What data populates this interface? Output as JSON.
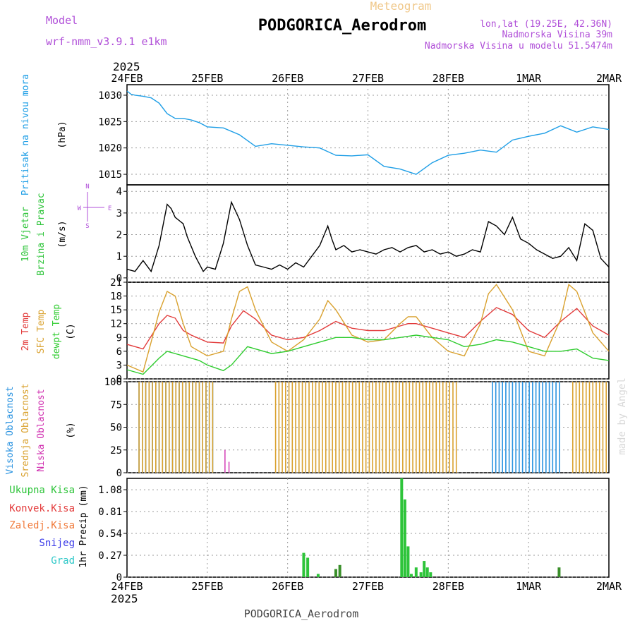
{
  "header": {
    "meteogram_label": "Meteogram",
    "model_label": "Model",
    "model_name": "wrf-nmm_v3.9.1 e1km",
    "station": "PODGORICA_Aerodrom",
    "lonlat": "lon,lat (19.25E, 42.36N)",
    "elev": "Nadmorska Visina 39m",
    "elev_model": "Nadmorska Visina u modelu 51.5474m",
    "year_top": "2025",
    "year_bottom": "2025",
    "footer_station": "PODGORICA_Aerodrom",
    "watermark": "made by Angel"
  },
  "colors": {
    "pressure": "#1e9ee6",
    "temp2m": "#e23b3b",
    "sfctemp": "#d9a12e",
    "dewpt": "#2ecc2e",
    "cloud_high": "#2a93e0",
    "cloud_mid": "#d9a12e",
    "cloud_low": "#d02fb0",
    "precip_total": "#2ec43a",
    "precip_conv": "#e33b3b",
    "precip_frz": "#f07a3a",
    "snow": "#3a3ae8",
    "graupel": "#2ec8c8",
    "wind_label": "#2ec43a",
    "wind_dir": "#b04fd8"
  },
  "days": [
    "24FEB",
    "25FEB",
    "26FEB",
    "27FEB",
    "28FEB",
    "1MAR",
    "2MAR"
  ],
  "chart_data": [
    {
      "panel": "pressure",
      "type": "line",
      "label": "Pritisak na nivou mora",
      "unit": "(hPa)",
      "ylim": [
        1013,
        1032
      ],
      "yticks": [
        1015,
        1020,
        1025,
        1030
      ],
      "grid": true,
      "series": [
        {
          "name": "Pritisak na nivou mora",
          "x": [
            0,
            0.05,
            0.1,
            0.2,
            0.3,
            0.4,
            0.5,
            0.6,
            0.7,
            0.8,
            0.9,
            1.0,
            1.2,
            1.4,
            1.6,
            1.8,
            2.0,
            2.2,
            2.4,
            2.6,
            2.8,
            3.0,
            3.2,
            3.4,
            3.6,
            3.8,
            4.0,
            4.2,
            4.4,
            4.6,
            4.8,
            5.0,
            5.2,
            5.4,
            5.6,
            5.8,
            6.0
          ],
          "y": [
            1030.8,
            1030.2,
            1030.0,
            1029.8,
            1029.5,
            1028.5,
            1026.5,
            1025.6,
            1025.6,
            1025.3,
            1024.8,
            1024.0,
            1023.8,
            1022.5,
            1020.3,
            1020.8,
            1020.5,
            1020.2,
            1020.0,
            1018.6,
            1018.5,
            1018.7,
            1016.5,
            1016.0,
            1015.0,
            1017.2,
            1018.6,
            1019.0,
            1019.6,
            1019.2,
            1021.5,
            1022.2,
            1022.8,
            1024.2,
            1023.0,
            1024.0,
            1023.5
          ]
        }
      ]
    },
    {
      "panel": "wind",
      "type": "line",
      "label_line1": "10m Vjetar",
      "label_line2": "Brzina i Pravac",
      "unit": "(m/s)",
      "ylim": [
        -0.2,
        4.3
      ],
      "yticks": [
        0,
        1,
        2,
        3,
        4
      ],
      "compass": {
        "north": "N",
        "south": "S",
        "west": "W",
        "east": "E"
      },
      "grid": true,
      "series": [
        {
          "name": "10m Vjetar",
          "x": [
            0,
            0.1,
            0.2,
            0.3,
            0.4,
            0.5,
            0.55,
            0.6,
            0.7,
            0.75,
            0.85,
            0.95,
            1.0,
            1.1,
            1.2,
            1.3,
            1.4,
            1.5,
            1.6,
            1.7,
            1.8,
            1.9,
            2.0,
            2.1,
            2.2,
            2.3,
            2.4,
            2.5,
            2.55,
            2.6,
            2.7,
            2.8,
            2.9,
            3.0,
            3.1,
            3.2,
            3.3,
            3.4,
            3.5,
            3.6,
            3.7,
            3.8,
            3.9,
            4.0,
            4.1,
            4.2,
            4.3,
            4.4,
            4.5,
            4.6,
            4.7,
            4.8,
            4.9,
            5.0,
            5.1,
            5.2,
            5.3,
            5.4,
            5.5,
            5.6,
            5.7,
            5.8,
            5.9,
            6.0
          ],
          "y": [
            0.4,
            0.3,
            0.8,
            0.3,
            1.5,
            3.4,
            3.2,
            2.8,
            2.5,
            1.9,
            1.0,
            0.3,
            0.5,
            0.4,
            1.6,
            3.5,
            2.7,
            1.5,
            0.6,
            0.5,
            0.4,
            0.6,
            0.4,
            0.7,
            0.5,
            1.0,
            1.5,
            2.4,
            1.8,
            1.3,
            1.5,
            1.2,
            1.3,
            1.2,
            1.1,
            1.3,
            1.4,
            1.2,
            1.4,
            1.5,
            1.2,
            1.3,
            1.1,
            1.2,
            1.0,
            1.1,
            1.3,
            1.2,
            2.6,
            2.4,
            2.0,
            2.8,
            1.8,
            1.6,
            1.3,
            1.1,
            0.9,
            1.0,
            1.4,
            0.8,
            2.5,
            2.2,
            0.9,
            0.5
          ]
        }
      ]
    },
    {
      "panel": "temperature",
      "type": "line",
      "labels": [
        "2m Temp",
        "SFC Temp",
        "dewpt Temp"
      ],
      "unit": "(C)",
      "ylim": [
        0,
        21
      ],
      "yticks": [
        0,
        3,
        6,
        9,
        12,
        15,
        18,
        21
      ],
      "grid": true,
      "series": [
        {
          "name": "2m Temp",
          "x": [
            0,
            0.2,
            0.4,
            0.5,
            0.6,
            0.7,
            0.8,
            1.0,
            1.2,
            1.3,
            1.45,
            1.6,
            1.8,
            2.0,
            2.2,
            2.4,
            2.5,
            2.6,
            2.8,
            3.0,
            3.2,
            3.4,
            3.5,
            3.6,
            3.8,
            4.0,
            4.2,
            4.4,
            4.6,
            4.8,
            5.0,
            5.2,
            5.4,
            5.6,
            5.8,
            6.0
          ],
          "y": [
            7.5,
            6.5,
            12.0,
            13.8,
            13.2,
            10.5,
            9.5,
            8.0,
            7.8,
            11.5,
            14.8,
            13.0,
            9.5,
            8.5,
            9.0,
            10.5,
            11.5,
            12.5,
            11.0,
            10.5,
            10.5,
            11.5,
            12.0,
            12.0,
            11.0,
            10.0,
            9.0,
            12.5,
            15.5,
            14.0,
            10.5,
            9.0,
            12.5,
            15.3,
            11.5,
            9.5
          ]
        },
        {
          "name": "SFC Temp",
          "x": [
            0,
            0.2,
            0.3,
            0.4,
            0.5,
            0.6,
            0.7,
            0.8,
            1.0,
            1.2,
            1.3,
            1.4,
            1.5,
            1.6,
            1.8,
            2.0,
            2.2,
            2.4,
            2.5,
            2.6,
            2.8,
            3.0,
            3.2,
            3.4,
            3.5,
            3.6,
            3.8,
            4.0,
            4.2,
            4.4,
            4.5,
            4.6,
            4.8,
            5.0,
            5.2,
            5.4,
            5.5,
            5.6,
            5.8,
            6.0
          ],
          "y": [
            3.0,
            1.5,
            8.0,
            14.5,
            19.0,
            18.0,
            12.0,
            7.0,
            5.0,
            6.0,
            13.0,
            19.0,
            20.0,
            15.0,
            8.0,
            6.0,
            8.5,
            13.0,
            17.0,
            15.0,
            9.5,
            8.0,
            8.5,
            12.0,
            13.5,
            13.5,
            9.0,
            6.0,
            5.0,
            12.0,
            18.5,
            20.5,
            15.0,
            6.0,
            5.0,
            13.0,
            20.5,
            19.0,
            10.0,
            6.0
          ]
        },
        {
          "name": "dewpt Temp",
          "x": [
            0,
            0.2,
            0.4,
            0.5,
            0.7,
            0.9,
            1.0,
            1.2,
            1.3,
            1.5,
            1.6,
            1.8,
            2.0,
            2.2,
            2.4,
            2.6,
            2.8,
            3.0,
            3.2,
            3.4,
            3.6,
            3.8,
            4.0,
            4.2,
            4.4,
            4.6,
            4.8,
            5.0,
            5.2,
            5.4,
            5.6,
            5.8,
            6.0
          ],
          "y": [
            2.0,
            1.0,
            4.5,
            6.0,
            5.0,
            4.0,
            3.0,
            1.8,
            3.0,
            7.0,
            6.5,
            5.5,
            6.0,
            7.0,
            8.0,
            9.0,
            9.0,
            8.5,
            8.5,
            9.0,
            9.5,
            9.0,
            8.5,
            7.0,
            7.5,
            8.5,
            8.0,
            7.0,
            6.0,
            6.0,
            6.5,
            4.5,
            4.0
          ]
        }
      ]
    },
    {
      "panel": "clouds",
      "type": "bar",
      "labels": [
        "Visoka Oblacnost",
        "Srednja Oblacnost",
        "Niska Oblacnost"
      ],
      "unit": "(%)",
      "ylim": [
        0,
        100
      ],
      "yticks": [
        0,
        25,
        50,
        75,
        100
      ],
      "grid": true,
      "bands": [
        {
          "name": "Visoka Oblacnost",
          "from": 0.15,
          "to": 1.1,
          "value": 100
        },
        {
          "name": "Srednja Oblacnost",
          "from": 0.15,
          "to": 1.1,
          "value": 100
        },
        {
          "name": "Srednja Oblacnost",
          "from": 1.85,
          "to": 4.1,
          "value": 100
        },
        {
          "name": "Visoka Oblacnost",
          "from": 4.55,
          "to": 5.4,
          "value": 100
        },
        {
          "name": "Srednja Oblacnost",
          "from": 5.55,
          "to": 6.0,
          "value": 100
        }
      ],
      "isolated": [
        {
          "name": "Niska Oblacnost",
          "x": 1.22,
          "value": 25
        },
        {
          "name": "Niska Oblacnost",
          "x": 1.27,
          "value": 12
        }
      ]
    },
    {
      "panel": "precip",
      "type": "bar",
      "labels": [
        "Ukupna Kisa",
        "Konvek.Kisa",
        "Zaledj.Kisa",
        "Snijeg",
        "Grad"
      ],
      "ylabel": "1hr Precip (mm)",
      "ylim": [
        0,
        1.22
      ],
      "yticks": [
        0,
        0.27,
        0.54,
        0.81,
        1.08
      ],
      "grid": true,
      "series": [
        {
          "name": "Ukupna Kisa",
          "x": [
            2.2,
            2.25,
            2.38,
            3.42,
            3.46,
            3.5,
            3.54,
            3.6,
            3.66,
            3.7,
            3.74,
            3.78
          ],
          "values": [
            0.3,
            0.24,
            0.04,
            1.22,
            0.96,
            0.38,
            0.04,
            0.12,
            0.06,
            0.2,
            0.12,
            0.06
          ]
        },
        {
          "name": "Konvek.Kisa",
          "x": [
            2.6,
            2.65,
            5.38
          ],
          "values": [
            0.1,
            0.15,
            0.12
          ]
        }
      ]
    }
  ]
}
